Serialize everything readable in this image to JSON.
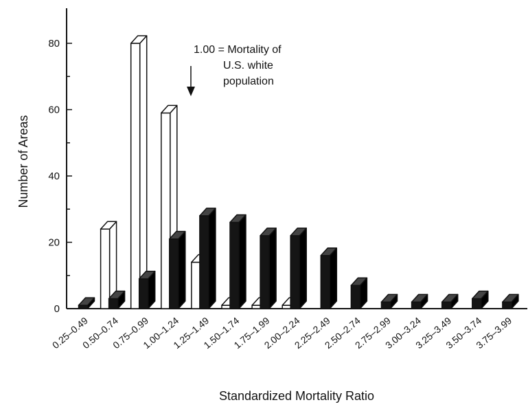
{
  "chart_data": {
    "type": "bar",
    "title": "",
    "xlabel": "Standardized Mortality Ratio",
    "ylabel": "Number of Areas",
    "ylim": [
      0,
      85
    ],
    "yticks": [
      0,
      20,
      40,
      60,
      80
    ],
    "grid": false,
    "categories": [
      "0.25–0.49",
      "0.50–0.74",
      "0.75–0.99",
      "1.00–1.24",
      "1.25–1.49",
      "1.50–1.74",
      "1.75–1.99",
      "2.00–2.24",
      "2.25–2.49",
      "2.50–2.74",
      "2.75–2.99",
      "3.00–3.24",
      "3.25–3.49",
      "3.50–3.74",
      "3.75–3.99"
    ],
    "series": [
      {
        "color": "#111111",
        "values": [
          0,
          24,
          80,
          59,
          14,
          1,
          1,
          1,
          0,
          0,
          0,
          0,
          0,
          0,
          0
        ]
      },
      {
        "color": "#111111",
        "values": [
          1,
          3,
          9,
          21,
          28,
          26,
          22,
          22,
          16,
          7,
          2,
          2,
          2,
          3,
          2
        ]
      }
    ],
    "annotation": {
      "lines": [
        "1.00 = Mortality of",
        "U.S. white",
        "population"
      ],
      "points_to": "1.00–1.24"
    }
  }
}
